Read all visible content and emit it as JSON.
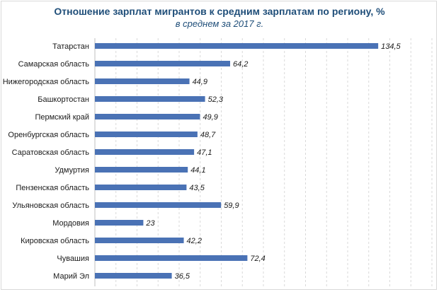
{
  "chart_data": {
    "type": "bar",
    "orientation": "horizontal",
    "title": "Отношение зарплат мигрантов к средним зарплатам по региону, %",
    "subtitle": "в среднем за 2017 г.",
    "categories": [
      "Татарстан",
      "Самарская область",
      "Нижегородская область",
      "Башкортостан",
      "Пермский край",
      "Оренбургская область",
      "Саратовская область",
      "Удмуртия",
      "Пензенская область",
      "Ульяновская область",
      "Мордовия",
      "Кировская область",
      "Чувашия",
      "Марий Эл"
    ],
    "values": [
      134.5,
      64.2,
      44.9,
      52.3,
      49.9,
      48.7,
      47.1,
      44.1,
      43.5,
      59.9,
      23,
      42.2,
      72.4,
      36.5
    ],
    "value_labels": [
      "134,5",
      "64,2",
      "44,9",
      "52,3",
      "49,9",
      "48,7",
      "47,1",
      "44,1",
      "43,5",
      "59,9",
      "23",
      "42,2",
      "72,4",
      "36,5"
    ],
    "xlim": [
      0,
      160
    ],
    "grid": "vertical-dashed",
    "bar_color": "#4a72b5",
    "legend": "none"
  }
}
